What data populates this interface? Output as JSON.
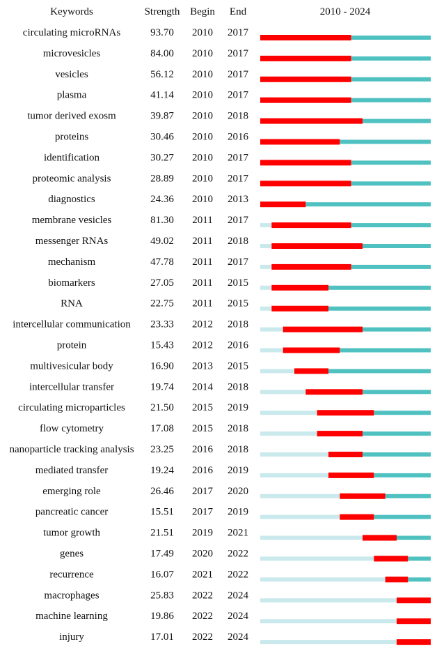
{
  "chart_data": {
    "type": "table",
    "headers": {
      "keyword": "Keywords",
      "strength": "Strength",
      "begin": "Begin",
      "end": "End",
      "timeline": "2010 - 2024"
    },
    "year_range": [
      2010,
      2024
    ],
    "colors": {
      "burst": "#ff0000",
      "active": "#4fc1c1",
      "pre": "#c9e9ec"
    },
    "rows": [
      {
        "keyword": "circulating microRNAs",
        "strength": "93.70",
        "begin": "2010",
        "end": "2017"
      },
      {
        "keyword": "microvesicles",
        "strength": "84.00",
        "begin": "2010",
        "end": "2017"
      },
      {
        "keyword": "vesicles",
        "strength": "56.12",
        "begin": "2010",
        "end": "2017"
      },
      {
        "keyword": "plasma",
        "strength": "41.14",
        "begin": "2010",
        "end": "2017"
      },
      {
        "keyword": "tumor derived exosm",
        "strength": "39.87",
        "begin": "2010",
        "end": "2018"
      },
      {
        "keyword": "proteins",
        "strength": "30.46",
        "begin": "2010",
        "end": "2016"
      },
      {
        "keyword": "identification",
        "strength": "30.27",
        "begin": "2010",
        "end": "2017"
      },
      {
        "keyword": "proteomic analysis",
        "strength": "28.89",
        "begin": "2010",
        "end": "2017"
      },
      {
        "keyword": "diagnostics",
        "strength": "24.36",
        "begin": "2010",
        "end": "2013"
      },
      {
        "keyword": "membrane vesicles",
        "strength": "81.30",
        "begin": "2011",
        "end": "2017"
      },
      {
        "keyword": "messenger RNAs",
        "strength": "49.02",
        "begin": "2011",
        "end": "2018"
      },
      {
        "keyword": "mechanism",
        "strength": "47.78",
        "begin": "2011",
        "end": "2017"
      },
      {
        "keyword": "biomarkers",
        "strength": "27.05",
        "begin": "2011",
        "end": "2015"
      },
      {
        "keyword": "RNA",
        "strength": "22.75",
        "begin": "2011",
        "end": "2015"
      },
      {
        "keyword": "intercellular communication",
        "strength": "23.33",
        "begin": "2012",
        "end": "2018"
      },
      {
        "keyword": "protein",
        "strength": "15.43",
        "begin": "2012",
        "end": "2016"
      },
      {
        "keyword": "multivesicular body",
        "strength": "16.90",
        "begin": "2013",
        "end": "2015"
      },
      {
        "keyword": "intercellular transfer",
        "strength": "19.74",
        "begin": "2014",
        "end": "2018"
      },
      {
        "keyword": "circulating microparticles",
        "strength": "21.50",
        "begin": "2015",
        "end": "2019"
      },
      {
        "keyword": "flow cytometry",
        "strength": "17.08",
        "begin": "2015",
        "end": "2018"
      },
      {
        "keyword": "nanoparticle tracking analysis",
        "strength": "23.25",
        "begin": "2016",
        "end": "2018"
      },
      {
        "keyword": "mediated transfer",
        "strength": "19.24",
        "begin": "2016",
        "end": "2019"
      },
      {
        "keyword": "emerging role",
        "strength": "26.46",
        "begin": "2017",
        "end": "2020"
      },
      {
        "keyword": "pancreatic cancer",
        "strength": "15.51",
        "begin": "2017",
        "end": "2019"
      },
      {
        "keyword": "tumor growth",
        "strength": "21.51",
        "begin": "2019",
        "end": "2021"
      },
      {
        "keyword": "genes",
        "strength": "17.49",
        "begin": "2020",
        "end": "2022"
      },
      {
        "keyword": "recurrence",
        "strength": "16.07",
        "begin": "2021",
        "end": "2022"
      },
      {
        "keyword": "macrophages",
        "strength": "25.83",
        "begin": "2022",
        "end": "2024"
      },
      {
        "keyword": "machine learning",
        "strength": "19.86",
        "begin": "2022",
        "end": "2024"
      },
      {
        "keyword": "injury",
        "strength": "17.01",
        "begin": "2022",
        "end": "2024"
      }
    ]
  }
}
